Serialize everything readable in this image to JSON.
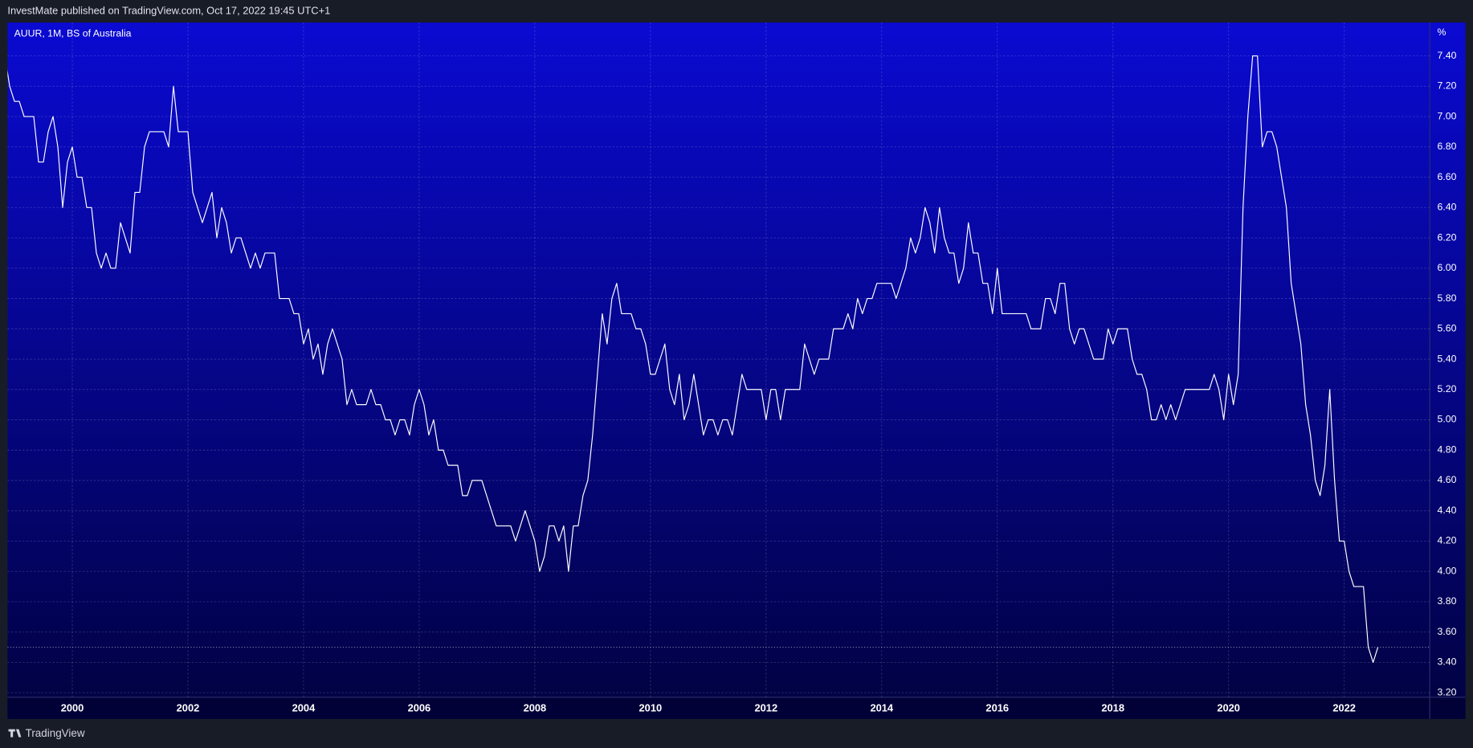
{
  "chart_data": {
    "type": "line",
    "source_text": "InvestMate published on TradingView.com, Oct 17, 2022 19:45 UTC+1",
    "legend_text": "AUUR, 1M, BS of Australia",
    "unit": "%",
    "brand": "TradingView",
    "color": "#ffffff",
    "grid": true,
    "xlim": [
      1998.88,
      2023.48
    ],
    "ylim": [
      3.17,
      7.62
    ],
    "xticks": [
      2000,
      2002,
      2004,
      2006,
      2008,
      2010,
      2012,
      2014,
      2016,
      2018,
      2020,
      2022
    ],
    "yticks": [
      {
        "value": 3.2,
        "label": "3.20"
      },
      {
        "value": 3.4,
        "label": "3.40"
      },
      {
        "value": 3.6,
        "label": "3.60"
      },
      {
        "value": 3.8,
        "label": "3.80"
      },
      {
        "value": 4.0,
        "label": "4.00"
      },
      {
        "value": 4.2,
        "label": "4.20"
      },
      {
        "value": 4.4,
        "label": "4.40"
      },
      {
        "value": 4.6,
        "label": "4.60"
      },
      {
        "value": 4.8,
        "label": "4.80"
      },
      {
        "value": 5.0,
        "label": "5.00"
      },
      {
        "value": 5.2,
        "label": "5.20"
      },
      {
        "value": 5.4,
        "label": "5.40"
      },
      {
        "value": 5.6,
        "label": "5.60"
      },
      {
        "value": 5.8,
        "label": "5.80"
      },
      {
        "value": 6.0,
        "label": "6.00"
      },
      {
        "value": 6.2,
        "label": "6.20"
      },
      {
        "value": 6.4,
        "label": "6.40"
      },
      {
        "value": 6.6,
        "label": "6.60"
      },
      {
        "value": 6.8,
        "label": "6.80"
      },
      {
        "value": 7.0,
        "label": "7.00"
      },
      {
        "value": 7.2,
        "label": "7.20"
      },
      {
        "value": 7.4,
        "label": "7.40"
      }
    ],
    "x": [
      "1998-11",
      "1998-12",
      "1999-01",
      "1999-02",
      "1999-03",
      "1999-04",
      "1999-05",
      "1999-06",
      "1999-07",
      "1999-08",
      "1999-09",
      "1999-10",
      "1999-11",
      "1999-12",
      "2000-01",
      "2000-02",
      "2000-03",
      "2000-04",
      "2000-05",
      "2000-06",
      "2000-07",
      "2000-08",
      "2000-09",
      "2000-10",
      "2000-11",
      "2000-12",
      "2001-01",
      "2001-02",
      "2001-03",
      "2001-04",
      "2001-05",
      "2001-06",
      "2001-07",
      "2001-08",
      "2001-09",
      "2001-10",
      "2001-11",
      "2001-12",
      "2002-01",
      "2002-02",
      "2002-03",
      "2002-04",
      "2002-05",
      "2002-06",
      "2002-07",
      "2002-08",
      "2002-09",
      "2002-10",
      "2002-11",
      "2002-12",
      "2003-01",
      "2003-02",
      "2003-03",
      "2003-04",
      "2003-05",
      "2003-06",
      "2003-07",
      "2003-08",
      "2003-09",
      "2003-10",
      "2003-11",
      "2003-12",
      "2004-01",
      "2004-02",
      "2004-03",
      "2004-04",
      "2004-05",
      "2004-06",
      "2004-07",
      "2004-08",
      "2004-09",
      "2004-10",
      "2004-11",
      "2004-12",
      "2005-01",
      "2005-02",
      "2005-03",
      "2005-04",
      "2005-05",
      "2005-06",
      "2005-07",
      "2005-08",
      "2005-09",
      "2005-10",
      "2005-11",
      "2005-12",
      "2006-01",
      "2006-02",
      "2006-03",
      "2006-04",
      "2006-05",
      "2006-06",
      "2006-07",
      "2006-08",
      "2006-09",
      "2006-10",
      "2006-11",
      "2006-12",
      "2007-01",
      "2007-02",
      "2007-03",
      "2007-04",
      "2007-05",
      "2007-06",
      "2007-07",
      "2007-08",
      "2007-09",
      "2007-10",
      "2007-11",
      "2007-12",
      "2008-01",
      "2008-02",
      "2008-03",
      "2008-04",
      "2008-05",
      "2008-06",
      "2008-07",
      "2008-08",
      "2008-09",
      "2008-10",
      "2008-11",
      "2008-12",
      "2009-01",
      "2009-02",
      "2009-03",
      "2009-04",
      "2009-05",
      "2009-06",
      "2009-07",
      "2009-08",
      "2009-09",
      "2009-10",
      "2009-11",
      "2009-12",
      "2010-01",
      "2010-02",
      "2010-03",
      "2010-04",
      "2010-05",
      "2010-06",
      "2010-07",
      "2010-08",
      "2010-09",
      "2010-10",
      "2010-11",
      "2010-12",
      "2011-01",
      "2011-02",
      "2011-03",
      "2011-04",
      "2011-05",
      "2011-06",
      "2011-07",
      "2011-08",
      "2011-09",
      "2011-10",
      "2011-11",
      "2011-12",
      "2012-01",
      "2012-02",
      "2012-03",
      "2012-04",
      "2012-05",
      "2012-06",
      "2012-07",
      "2012-08",
      "2012-09",
      "2012-10",
      "2012-11",
      "2012-12",
      "2013-01",
      "2013-02",
      "2013-03",
      "2013-04",
      "2013-05",
      "2013-06",
      "2013-07",
      "2013-08",
      "2013-09",
      "2013-10",
      "2013-11",
      "2013-12",
      "2014-01",
      "2014-02",
      "2014-03",
      "2014-04",
      "2014-05",
      "2014-06",
      "2014-07",
      "2014-08",
      "2014-09",
      "2014-10",
      "2014-11",
      "2014-12",
      "2015-01",
      "2015-02",
      "2015-03",
      "2015-04",
      "2015-05",
      "2015-06",
      "2015-07",
      "2015-08",
      "2015-09",
      "2015-10",
      "2015-11",
      "2015-12",
      "2016-01",
      "2016-02",
      "2016-03",
      "2016-04",
      "2016-05",
      "2016-06",
      "2016-07",
      "2016-08",
      "2016-09",
      "2016-10",
      "2016-11",
      "2016-12",
      "2017-01",
      "2017-02",
      "2017-03",
      "2017-04",
      "2017-05",
      "2017-06",
      "2017-07",
      "2017-08",
      "2017-09",
      "2017-10",
      "2017-11",
      "2017-12",
      "2018-01",
      "2018-02",
      "2018-03",
      "2018-04",
      "2018-05",
      "2018-06",
      "2018-07",
      "2018-08",
      "2018-09",
      "2018-10",
      "2018-11",
      "2018-12",
      "2019-01",
      "2019-02",
      "2019-03",
      "2019-04",
      "2019-05",
      "2019-06",
      "2019-07",
      "2019-08",
      "2019-09",
      "2019-10",
      "2019-11",
      "2019-12",
      "2020-01",
      "2020-02",
      "2020-03",
      "2020-04",
      "2020-05",
      "2020-06",
      "2020-07",
      "2020-08",
      "2020-09",
      "2020-10",
      "2020-11",
      "2020-12",
      "2021-01",
      "2021-02",
      "2021-03",
      "2021-04",
      "2021-05",
      "2021-06",
      "2021-07",
      "2021-08",
      "2021-09",
      "2021-10",
      "2021-11",
      "2021-12",
      "2022-01",
      "2022-02",
      "2022-03",
      "2022-04",
      "2022-05",
      "2022-06",
      "2022-07",
      "2022-08"
    ],
    "values": [
      7.4,
      7.2,
      7.1,
      7.1,
      7.0,
      7.0,
      7.0,
      6.7,
      6.7,
      6.9,
      7.0,
      6.8,
      6.4,
      6.7,
      6.8,
      6.6,
      6.6,
      6.4,
      6.4,
      6.1,
      6.0,
      6.1,
      6.0,
      6.0,
      6.3,
      6.2,
      6.1,
      6.5,
      6.5,
      6.8,
      6.9,
      6.9,
      6.9,
      6.9,
      6.8,
      7.2,
      6.9,
      6.9,
      6.9,
      6.5,
      6.4,
      6.3,
      6.4,
      6.5,
      6.2,
      6.4,
      6.3,
      6.1,
      6.2,
      6.2,
      6.1,
      6.0,
      6.1,
      6.0,
      6.1,
      6.1,
      6.1,
      5.8,
      5.8,
      5.8,
      5.7,
      5.7,
      5.5,
      5.6,
      5.4,
      5.5,
      5.3,
      5.5,
      5.6,
      5.5,
      5.4,
      5.1,
      5.2,
      5.1,
      5.1,
      5.1,
      5.2,
      5.1,
      5.1,
      5.0,
      5.0,
      4.9,
      5.0,
      5.0,
      4.9,
      5.1,
      5.2,
      5.1,
      4.9,
      5.0,
      4.8,
      4.8,
      4.7,
      4.7,
      4.7,
      4.5,
      4.5,
      4.6,
      4.6,
      4.6,
      4.5,
      4.4,
      4.3,
      4.3,
      4.3,
      4.3,
      4.2,
      4.3,
      4.4,
      4.3,
      4.2,
      4.0,
      4.1,
      4.3,
      4.3,
      4.2,
      4.3,
      4.0,
      4.3,
      4.3,
      4.5,
      4.6,
      4.9,
      5.3,
      5.7,
      5.5,
      5.8,
      5.9,
      5.7,
      5.7,
      5.7,
      5.6,
      5.6,
      5.5,
      5.3,
      5.3,
      5.4,
      5.5,
      5.2,
      5.1,
      5.3,
      5.0,
      5.1,
      5.3,
      5.1,
      4.9,
      5.0,
      5.0,
      4.9,
      5.0,
      5.0,
      4.9,
      5.1,
      5.3,
      5.2,
      5.2,
      5.2,
      5.2,
      5.0,
      5.2,
      5.2,
      5.0,
      5.2,
      5.2,
      5.2,
      5.2,
      5.5,
      5.4,
      5.3,
      5.4,
      5.4,
      5.4,
      5.6,
      5.6,
      5.6,
      5.7,
      5.6,
      5.8,
      5.7,
      5.8,
      5.8,
      5.9,
      5.9,
      5.9,
      5.9,
      5.8,
      5.9,
      6.0,
      6.2,
      6.1,
      6.2,
      6.4,
      6.3,
      6.1,
      6.4,
      6.2,
      6.1,
      6.1,
      5.9,
      6.0,
      6.3,
      6.1,
      6.1,
      5.9,
      5.9,
      5.7,
      6.0,
      5.7,
      5.7,
      5.7,
      5.7,
      5.7,
      5.7,
      5.6,
      5.6,
      5.6,
      5.8,
      5.8,
      5.7,
      5.9,
      5.9,
      5.6,
      5.5,
      5.6,
      5.6,
      5.5,
      5.4,
      5.4,
      5.4,
      5.6,
      5.5,
      5.6,
      5.6,
      5.6,
      5.4,
      5.3,
      5.3,
      5.2,
      5.0,
      5.0,
      5.1,
      5.0,
      5.1,
      5.0,
      5.1,
      5.2,
      5.2,
      5.2,
      5.2,
      5.2,
      5.2,
      5.3,
      5.2,
      5.0,
      5.3,
      5.1,
      5.3,
      6.4,
      7.0,
      7.4,
      7.4,
      6.8,
      6.9,
      6.9,
      6.8,
      6.6,
      6.4,
      5.9,
      5.7,
      5.5,
      5.1,
      4.9,
      4.6,
      4.5,
      4.7,
      5.2,
      4.6,
      4.2,
      4.2,
      4.0,
      3.9,
      3.9,
      3.9,
      3.5,
      3.4,
      3.5
    ]
  }
}
